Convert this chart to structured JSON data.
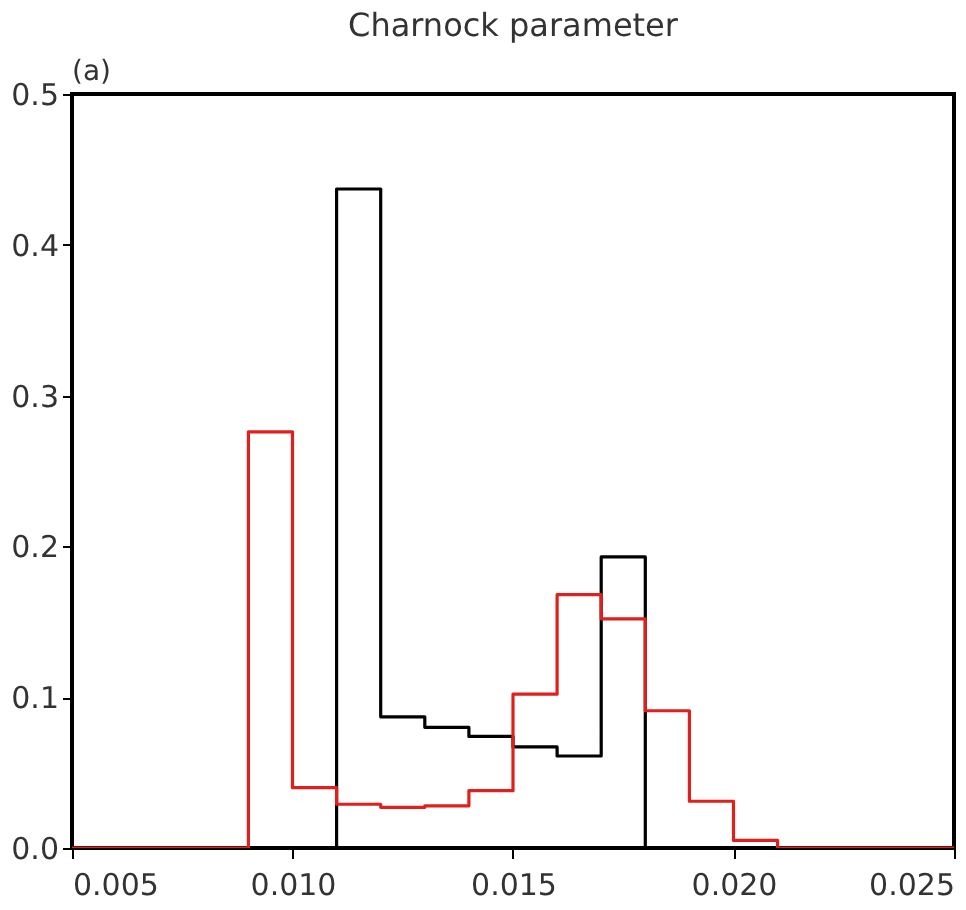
{
  "chart_data": {
    "type": "histogram",
    "title": "Charnock parameter",
    "annotations": [
      "(a)"
    ],
    "bins": [
      0.005,
      0.006,
      0.007,
      0.008,
      0.009,
      0.01,
      0.011,
      0.012,
      0.013,
      0.014,
      0.015,
      0.016,
      0.017,
      0.018,
      0.019,
      0.02,
      0.021,
      0.022,
      0.023,
      0.024,
      0.025
    ],
    "series": [
      {
        "color": "#000000",
        "values": [
          0,
          0,
          0,
          0,
          0,
          0,
          0.437,
          0.087,
          0.08,
          0.074,
          0.067,
          0.061,
          0.193,
          0,
          0,
          0,
          0,
          0,
          0,
          0
        ]
      },
      {
        "color": "#e0201c",
        "values": [
          0,
          0,
          0,
          0,
          0.276,
          0.04,
          0.029,
          0.027,
          0.028,
          0.038,
          0.102,
          0.168,
          0.152,
          0.091,
          0.031,
          0.005,
          0,
          0,
          0,
          0
        ]
      }
    ],
    "xlim": [
      0.005,
      0.025
    ],
    "xticks": [
      {
        "value": 0.005,
        "label": "0.005"
      },
      {
        "value": 0.01,
        "label": "0.010"
      },
      {
        "value": 0.015,
        "label": "0.015"
      },
      {
        "value": 0.02,
        "label": "0.020"
      },
      {
        "value": 0.025,
        "label": "0.025"
      }
    ],
    "ylim": [
      0,
      0.5
    ],
    "yticks": [
      {
        "value": 0,
        "label": "0.0"
      },
      0.1,
      0.2,
      0.3,
      0.4,
      0.5
    ],
    "grid": false
  }
}
